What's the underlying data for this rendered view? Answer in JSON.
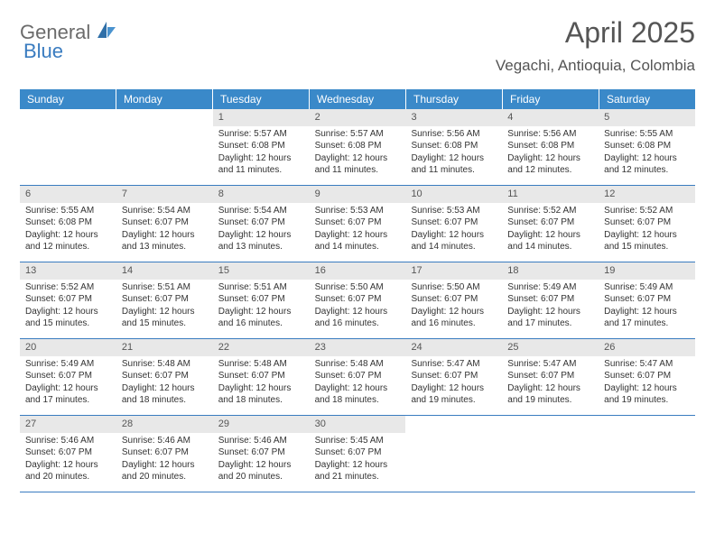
{
  "logo": {
    "text1": "General",
    "text2": "Blue"
  },
  "title": "April 2025",
  "location": "Vegachi, Antioquia, Colombia",
  "colors": {
    "header_bg": "#3a89c9",
    "header_text": "#ffffff",
    "daynum_bg": "#e8e8e8",
    "border": "#3a7cc0",
    "logo_gray": "#6b6b6b",
    "logo_blue": "#3a7cc0"
  },
  "weekdays": [
    "Sunday",
    "Monday",
    "Tuesday",
    "Wednesday",
    "Thursday",
    "Friday",
    "Saturday"
  ],
  "weeks": [
    [
      {
        "n": "",
        "sr": "",
        "ss": "",
        "dl": ""
      },
      {
        "n": "",
        "sr": "",
        "ss": "",
        "dl": ""
      },
      {
        "n": "1",
        "sr": "Sunrise: 5:57 AM",
        "ss": "Sunset: 6:08 PM",
        "dl": "Daylight: 12 hours and 11 minutes."
      },
      {
        "n": "2",
        "sr": "Sunrise: 5:57 AM",
        "ss": "Sunset: 6:08 PM",
        "dl": "Daylight: 12 hours and 11 minutes."
      },
      {
        "n": "3",
        "sr": "Sunrise: 5:56 AM",
        "ss": "Sunset: 6:08 PM",
        "dl": "Daylight: 12 hours and 11 minutes."
      },
      {
        "n": "4",
        "sr": "Sunrise: 5:56 AM",
        "ss": "Sunset: 6:08 PM",
        "dl": "Daylight: 12 hours and 12 minutes."
      },
      {
        "n": "5",
        "sr": "Sunrise: 5:55 AM",
        "ss": "Sunset: 6:08 PM",
        "dl": "Daylight: 12 hours and 12 minutes."
      }
    ],
    [
      {
        "n": "6",
        "sr": "Sunrise: 5:55 AM",
        "ss": "Sunset: 6:08 PM",
        "dl": "Daylight: 12 hours and 12 minutes."
      },
      {
        "n": "7",
        "sr": "Sunrise: 5:54 AM",
        "ss": "Sunset: 6:07 PM",
        "dl": "Daylight: 12 hours and 13 minutes."
      },
      {
        "n": "8",
        "sr": "Sunrise: 5:54 AM",
        "ss": "Sunset: 6:07 PM",
        "dl": "Daylight: 12 hours and 13 minutes."
      },
      {
        "n": "9",
        "sr": "Sunrise: 5:53 AM",
        "ss": "Sunset: 6:07 PM",
        "dl": "Daylight: 12 hours and 14 minutes."
      },
      {
        "n": "10",
        "sr": "Sunrise: 5:53 AM",
        "ss": "Sunset: 6:07 PM",
        "dl": "Daylight: 12 hours and 14 minutes."
      },
      {
        "n": "11",
        "sr": "Sunrise: 5:52 AM",
        "ss": "Sunset: 6:07 PM",
        "dl": "Daylight: 12 hours and 14 minutes."
      },
      {
        "n": "12",
        "sr": "Sunrise: 5:52 AM",
        "ss": "Sunset: 6:07 PM",
        "dl": "Daylight: 12 hours and 15 minutes."
      }
    ],
    [
      {
        "n": "13",
        "sr": "Sunrise: 5:52 AM",
        "ss": "Sunset: 6:07 PM",
        "dl": "Daylight: 12 hours and 15 minutes."
      },
      {
        "n": "14",
        "sr": "Sunrise: 5:51 AM",
        "ss": "Sunset: 6:07 PM",
        "dl": "Daylight: 12 hours and 15 minutes."
      },
      {
        "n": "15",
        "sr": "Sunrise: 5:51 AM",
        "ss": "Sunset: 6:07 PM",
        "dl": "Daylight: 12 hours and 16 minutes."
      },
      {
        "n": "16",
        "sr": "Sunrise: 5:50 AM",
        "ss": "Sunset: 6:07 PM",
        "dl": "Daylight: 12 hours and 16 minutes."
      },
      {
        "n": "17",
        "sr": "Sunrise: 5:50 AM",
        "ss": "Sunset: 6:07 PM",
        "dl": "Daylight: 12 hours and 16 minutes."
      },
      {
        "n": "18",
        "sr": "Sunrise: 5:49 AM",
        "ss": "Sunset: 6:07 PM",
        "dl": "Daylight: 12 hours and 17 minutes."
      },
      {
        "n": "19",
        "sr": "Sunrise: 5:49 AM",
        "ss": "Sunset: 6:07 PM",
        "dl": "Daylight: 12 hours and 17 minutes."
      }
    ],
    [
      {
        "n": "20",
        "sr": "Sunrise: 5:49 AM",
        "ss": "Sunset: 6:07 PM",
        "dl": "Daylight: 12 hours and 17 minutes."
      },
      {
        "n": "21",
        "sr": "Sunrise: 5:48 AM",
        "ss": "Sunset: 6:07 PM",
        "dl": "Daylight: 12 hours and 18 minutes."
      },
      {
        "n": "22",
        "sr": "Sunrise: 5:48 AM",
        "ss": "Sunset: 6:07 PM",
        "dl": "Daylight: 12 hours and 18 minutes."
      },
      {
        "n": "23",
        "sr": "Sunrise: 5:48 AM",
        "ss": "Sunset: 6:07 PM",
        "dl": "Daylight: 12 hours and 18 minutes."
      },
      {
        "n": "24",
        "sr": "Sunrise: 5:47 AM",
        "ss": "Sunset: 6:07 PM",
        "dl": "Daylight: 12 hours and 19 minutes."
      },
      {
        "n": "25",
        "sr": "Sunrise: 5:47 AM",
        "ss": "Sunset: 6:07 PM",
        "dl": "Daylight: 12 hours and 19 minutes."
      },
      {
        "n": "26",
        "sr": "Sunrise: 5:47 AM",
        "ss": "Sunset: 6:07 PM",
        "dl": "Daylight: 12 hours and 19 minutes."
      }
    ],
    [
      {
        "n": "27",
        "sr": "Sunrise: 5:46 AM",
        "ss": "Sunset: 6:07 PM",
        "dl": "Daylight: 12 hours and 20 minutes."
      },
      {
        "n": "28",
        "sr": "Sunrise: 5:46 AM",
        "ss": "Sunset: 6:07 PM",
        "dl": "Daylight: 12 hours and 20 minutes."
      },
      {
        "n": "29",
        "sr": "Sunrise: 5:46 AM",
        "ss": "Sunset: 6:07 PM",
        "dl": "Daylight: 12 hours and 20 minutes."
      },
      {
        "n": "30",
        "sr": "Sunrise: 5:45 AM",
        "ss": "Sunset: 6:07 PM",
        "dl": "Daylight: 12 hours and 21 minutes."
      },
      {
        "n": "",
        "sr": "",
        "ss": "",
        "dl": ""
      },
      {
        "n": "",
        "sr": "",
        "ss": "",
        "dl": ""
      },
      {
        "n": "",
        "sr": "",
        "ss": "",
        "dl": ""
      }
    ]
  ]
}
